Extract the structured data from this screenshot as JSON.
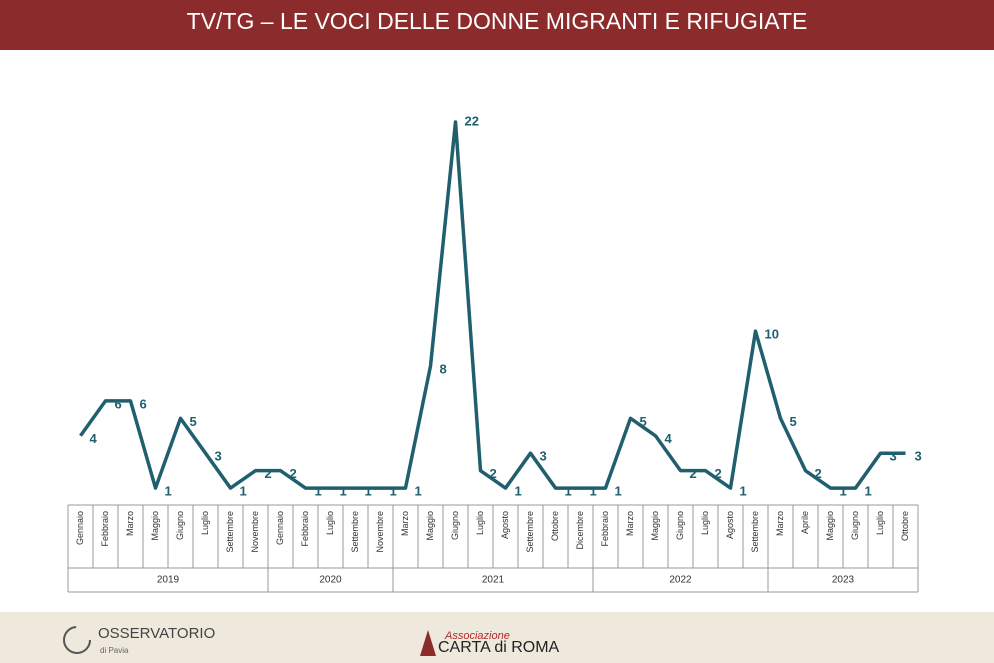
{
  "header": {
    "title": "TV/TG – LE VOCI DELLE DONNE MIGRANTI E RIFUGIATE"
  },
  "chart_data": {
    "type": "line",
    "color": "#1f5f6e",
    "groups": [
      {
        "label": "2019",
        "categories": [
          "Gennaio",
          "Febbraio",
          "Marzo",
          "Maggio",
          "Giugno",
          "Luglio",
          "Settembre",
          "Novembre"
        ]
      },
      {
        "label": "2020",
        "categories": [
          "Gennaio",
          "Febbraio",
          "Luglio",
          "Settembre",
          "Novembre"
        ]
      },
      {
        "label": "2021",
        "categories": [
          "Marzo",
          "Maggio",
          "Giugno",
          "Luglio",
          "Agosto",
          "Settembre",
          "Ottobre",
          "Dicembre"
        ]
      },
      {
        "label": "2022",
        "categories": [
          "Febbraio",
          "Marzo",
          "Maggio",
          "Giugno",
          "Luglio",
          "Agosto",
          "Settembre"
        ]
      },
      {
        "label": "2023",
        "categories": [
          "Marzo",
          "Aprile",
          "Maggio",
          "Giugno",
          "Luglio",
          "Ottobre"
        ]
      }
    ],
    "values": [
      4,
      6,
      6,
      1,
      5,
      3,
      1,
      2,
      2,
      1,
      1,
      1,
      1,
      1,
      8,
      22,
      2,
      1,
      3,
      1,
      1,
      1,
      5,
      4,
      2,
      2,
      1,
      10,
      5,
      2,
      1,
      1,
      3,
      3
    ]
  },
  "footer": {
    "left": "OSSERVATORIO",
    "left_sub": "di Pavia",
    "right_top": "Associazione",
    "right": "CARTA di ROMA"
  }
}
